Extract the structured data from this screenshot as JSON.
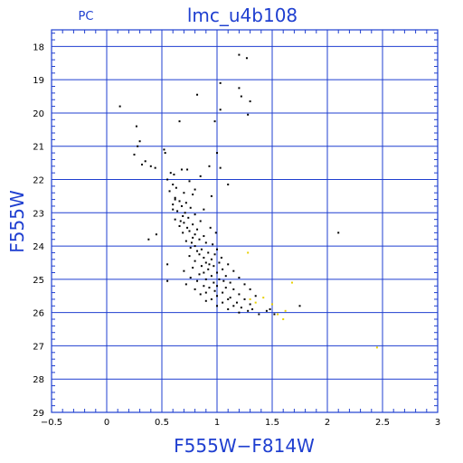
{
  "chart_data": {
    "type": "scatter",
    "title": "lmc_u4b108",
    "corner_label": "PC",
    "xlabel": "F555W−F814W",
    "ylabel": "F555W",
    "xlim": [
      -0.5,
      3
    ],
    "ylim": [
      29,
      17.5
    ],
    "y_inverted": true,
    "grid": true,
    "x_ticks": [
      "−0.5",
      "0",
      "0.5",
      "1",
      "1.5",
      "2",
      "2.5",
      "3"
    ],
    "x_tick_values": [
      -0.5,
      0,
      0.5,
      1,
      1.5,
      2,
      2.5,
      3
    ],
    "y_ticks": [
      "18",
      "19",
      "20",
      "21",
      "22",
      "23",
      "24",
      "25",
      "26",
      "27",
      "28",
      "29"
    ],
    "y_tick_values": [
      18,
      19,
      20,
      21,
      22,
      23,
      24,
      25,
      26,
      27,
      28,
      29
    ],
    "colors": {
      "frame": "#1f3fd0",
      "grid": "#1f3fd0",
      "points": "#000000",
      "faint_points": "#e8d000"
    },
    "series": [
      {
        "color": "#000000",
        "points": [
          [
            1.2,
            18.25
          ],
          [
            1.27,
            18.35
          ],
          [
            1.03,
            19.1
          ],
          [
            1.2,
            19.25
          ],
          [
            0.82,
            19.45
          ],
          [
            1.22,
            19.5
          ],
          [
            1.3,
            19.65
          ],
          [
            0.12,
            19.8
          ],
          [
            1.03,
            19.9
          ],
          [
            1.28,
            20.05
          ],
          [
            0.98,
            20.25
          ],
          [
            0.66,
            20.25
          ],
          [
            0.27,
            20.4
          ],
          [
            0.3,
            20.85
          ],
          [
            0.28,
            21.0
          ],
          [
            0.52,
            21.1
          ],
          [
            0.25,
            21.25
          ],
          [
            0.53,
            21.2
          ],
          [
            1.0,
            21.2
          ],
          [
            0.35,
            21.45
          ],
          [
            0.32,
            21.55
          ],
          [
            0.4,
            21.6
          ],
          [
            0.44,
            21.65
          ],
          [
            0.68,
            21.7
          ],
          [
            0.73,
            21.7
          ],
          [
            0.93,
            21.6
          ],
          [
            1.03,
            21.65
          ],
          [
            0.58,
            21.8
          ],
          [
            0.61,
            21.85
          ],
          [
            0.85,
            21.9
          ],
          [
            0.55,
            22.0
          ],
          [
            0.75,
            22.05
          ],
          [
            0.6,
            22.15
          ],
          [
            0.63,
            22.25
          ],
          [
            0.8,
            22.3
          ],
          [
            1.1,
            22.15
          ],
          [
            0.57,
            22.35
          ],
          [
            0.7,
            22.4
          ],
          [
            0.78,
            22.45
          ],
          [
            0.62,
            22.55
          ],
          [
            0.95,
            22.5
          ],
          [
            0.66,
            22.65
          ],
          [
            0.72,
            22.7
          ],
          [
            0.6,
            22.75
          ],
          [
            0.68,
            22.8
          ],
          [
            0.76,
            22.85
          ],
          [
            0.88,
            22.9
          ],
          [
            0.64,
            22.95
          ],
          [
            0.71,
            23.0
          ],
          [
            0.8,
            23.05
          ],
          [
            0.69,
            23.1
          ],
          [
            0.74,
            23.15
          ],
          [
            0.62,
            23.2
          ],
          [
            0.85,
            23.25
          ],
          [
            0.7,
            23.3
          ],
          [
            0.78,
            23.35
          ],
          [
            0.66,
            23.4
          ],
          [
            0.73,
            23.45
          ],
          [
            0.82,
            23.5
          ],
          [
            0.94,
            23.45
          ],
          [
            0.75,
            23.55
          ],
          [
            0.69,
            23.6
          ],
          [
            0.8,
            23.65
          ],
          [
            0.88,
            23.7
          ],
          [
            0.99,
            23.6
          ],
          [
            0.45,
            23.65
          ],
          [
            0.38,
            23.8
          ],
          [
            0.78,
            23.75
          ],
          [
            0.84,
            23.8
          ],
          [
            0.72,
            23.85
          ],
          [
            0.9,
            23.9
          ],
          [
            0.96,
            23.95
          ],
          [
            0.8,
            24.0
          ],
          [
            0.76,
            24.05
          ],
          [
            0.86,
            24.1
          ],
          [
            1.0,
            24.1
          ],
          [
            0.82,
            24.15
          ],
          [
            0.92,
            24.2
          ],
          [
            0.98,
            24.25
          ],
          [
            0.75,
            24.3
          ],
          [
            0.88,
            24.35
          ],
          [
            1.04,
            24.35
          ],
          [
            0.95,
            24.4
          ],
          [
            0.8,
            24.45
          ],
          [
            0.9,
            24.5
          ],
          [
            1.02,
            24.5
          ],
          [
            0.55,
            24.55
          ],
          [
            0.86,
            24.6
          ],
          [
            0.97,
            24.6
          ],
          [
            1.1,
            24.55
          ],
          [
            0.78,
            24.65
          ],
          [
            0.92,
            24.7
          ],
          [
            1.05,
            24.7
          ],
          [
            0.7,
            24.75
          ],
          [
            0.88,
            24.8
          ],
          [
            1.0,
            24.8
          ],
          [
            1.15,
            24.75
          ],
          [
            0.84,
            24.85
          ],
          [
            0.95,
            24.9
          ],
          [
            1.08,
            24.9
          ],
          [
            0.76,
            24.95
          ],
          [
            0.9,
            25.0
          ],
          [
            1.02,
            25.0
          ],
          [
            1.2,
            24.95
          ],
          [
            0.55,
            25.05
          ],
          [
            0.82,
            25.05
          ],
          [
            0.97,
            25.1
          ],
          [
            1.12,
            25.1
          ],
          [
            0.72,
            25.15
          ],
          [
            0.88,
            25.2
          ],
          [
            1.0,
            25.2
          ],
          [
            1.25,
            25.15
          ],
          [
            0.93,
            25.25
          ],
          [
            1.08,
            25.25
          ],
          [
            0.8,
            25.3
          ],
          [
            0.98,
            25.35
          ],
          [
            1.15,
            25.3
          ],
          [
            1.3,
            25.3
          ],
          [
            0.9,
            25.4
          ],
          [
            1.05,
            25.4
          ],
          [
            1.2,
            25.45
          ],
          [
            0.85,
            25.45
          ],
          [
            1.0,
            25.5
          ],
          [
            1.12,
            25.55
          ],
          [
            1.35,
            25.5
          ],
          [
            0.95,
            25.6
          ],
          [
            1.1,
            25.6
          ],
          [
            1.25,
            25.6
          ],
          [
            0.9,
            25.65
          ],
          [
            1.05,
            25.7
          ],
          [
            1.18,
            25.7
          ],
          [
            1.3,
            25.75
          ],
          [
            1.0,
            25.8
          ],
          [
            1.15,
            25.8
          ],
          [
            1.22,
            25.85
          ],
          [
            1.32,
            25.9
          ],
          [
            1.1,
            25.9
          ],
          [
            1.45,
            25.95
          ],
          [
            1.48,
            25.9
          ],
          [
            1.38,
            26.05
          ],
          [
            1.28,
            25.95
          ],
          [
            1.2,
            26.0
          ],
          [
            1.52,
            26.05
          ],
          [
            1.75,
            25.8
          ],
          [
            2.1,
            23.6
          ],
          [
            0.62,
            22.6
          ],
          [
            0.6,
            22.9
          ],
          [
            0.67,
            23.25
          ],
          [
            0.77,
            23.9
          ],
          [
            0.84,
            24.25
          ],
          [
            0.93,
            24.55
          ],
          [
            1.06,
            25.05
          ]
        ]
      },
      {
        "color": "#e8d000",
        "points": [
          [
            1.28,
            24.2
          ],
          [
            1.3,
            25.6
          ],
          [
            1.35,
            25.7
          ],
          [
            1.42,
            25.55
          ],
          [
            1.5,
            25.75
          ],
          [
            1.55,
            26.05
          ],
          [
            1.6,
            26.2
          ],
          [
            1.68,
            25.1
          ],
          [
            1.62,
            25.95
          ],
          [
            2.45,
            27.05
          ]
        ]
      }
    ]
  }
}
